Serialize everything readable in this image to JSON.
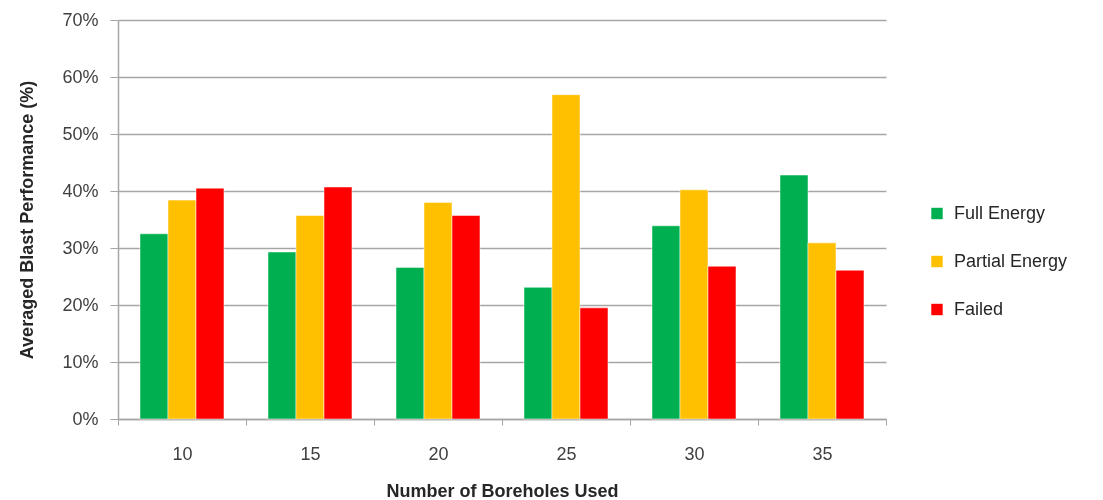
{
  "chart_data": {
    "type": "bar",
    "xlabel": "Number of Boreholes Used",
    "ylabel": "Averaged Blast Performance (%)",
    "categories": [
      "10",
      "15",
      "20",
      "25",
      "30",
      "35"
    ],
    "series": [
      {
        "name": "Full Energy",
        "color": "#00b050",
        "values": [
          32.5,
          29.3,
          26.6,
          23.1,
          33.9,
          42.8
        ]
      },
      {
        "name": "Partial Energy",
        "color": "#ffc000",
        "values": [
          38.4,
          35.7,
          38.0,
          56.9,
          40.2,
          30.9
        ]
      },
      {
        "name": "Failed",
        "color": "#ff0000",
        "values": [
          40.5,
          40.7,
          35.7,
          19.5,
          26.8,
          26.1
        ]
      }
    ],
    "ylim": [
      0,
      70
    ],
    "yticks": [
      {
        "value": 0,
        "label": "0%"
      },
      {
        "value": 10,
        "label": "10%"
      },
      {
        "value": 20,
        "label": "20%"
      },
      {
        "value": 30,
        "label": "30%"
      },
      {
        "value": 40,
        "label": "40%"
      },
      {
        "value": 50,
        "label": "50%"
      },
      {
        "value": 60,
        "label": "60%"
      },
      {
        "value": 70,
        "label": "70%"
      }
    ],
    "grid": "y",
    "legend": "right"
  }
}
